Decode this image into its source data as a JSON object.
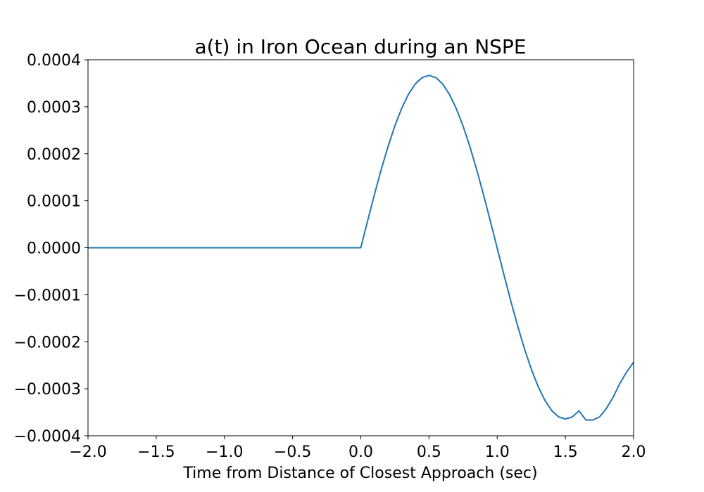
{
  "chart_data": {
    "type": "line",
    "title": "a(t) in Iron Ocean during an NSPE",
    "xlabel": "Time from Distance of Closest Approach (sec)",
    "ylabel": "",
    "xlim": [
      -2.0,
      2.0
    ],
    "ylim": [
      -0.0004,
      0.0004
    ],
    "xticks": [
      -2.0,
      -1.5,
      -1.0,
      -0.5,
      0.0,
      0.5,
      1.0,
      1.5,
      2.0
    ],
    "xtick_labels": [
      "−2.0",
      "−1.5",
      "−1.0",
      "−0.5",
      "0.0",
      "0.5",
      "1.0",
      "1.5",
      "2.0"
    ],
    "yticks": [
      -0.0004,
      -0.0003,
      -0.0002,
      -0.0001,
      0.0,
      0.0001,
      0.0002,
      0.0003,
      0.0004
    ],
    "ytick_labels": [
      "−0.0004",
      "−0.0003",
      "−0.0002",
      "−0.0001",
      "0.0000",
      "0.0001",
      "0.0002",
      "0.0003",
      "0.0004"
    ],
    "grid": false,
    "legend": "none",
    "series": [
      {
        "color": "#1f77b4",
        "x": [
          -2.0,
          -1.5,
          -1.0,
          -0.5,
          0.0,
          0.05,
          0.1,
          0.15,
          0.2,
          0.25,
          0.3,
          0.35,
          0.4,
          0.45,
          0.5,
          0.55,
          0.6,
          0.65,
          0.7,
          0.75,
          0.8,
          0.85,
          0.9,
          0.95,
          1.0,
          1.05,
          1.1,
          1.15,
          1.2,
          1.25,
          1.3,
          1.35,
          1.4,
          1.45,
          1.5,
          1.55,
          1.6,
          1.65,
          1.7,
          1.75,
          1.8,
          1.85,
          1.9,
          1.95,
          2.0
        ],
        "y": [
          0.0,
          0.0,
          0.0,
          0.0,
          0.0,
          5.74e-05,
          0.0001134,
          0.0001666,
          0.0002157,
          0.0002594,
          0.0002968,
          0.0003268,
          0.0003488,
          0.0003622,
          0.0003666,
          0.000362,
          0.0003485,
          0.0003263,
          0.0002961,
          0.0002587,
          0.0002149,
          0.0001656,
          0.0001124,
          5.64e-05,
          -9e-07,
          -5.81e-05,
          -0.0001137,
          -0.0001664,
          -0.000215,
          -0.0002582,
          -0.0002952,
          -0.0003248,
          -0.0003465,
          -0.0003598,
          -0.0003643,
          -0.00036,
          -0.000347,
          -0.0003666,
          -0.0003666,
          -0.00036,
          -0.000342,
          -0.000318,
          -0.000288,
          -0.000264,
          -0.0002435
        ]
      }
    ]
  }
}
